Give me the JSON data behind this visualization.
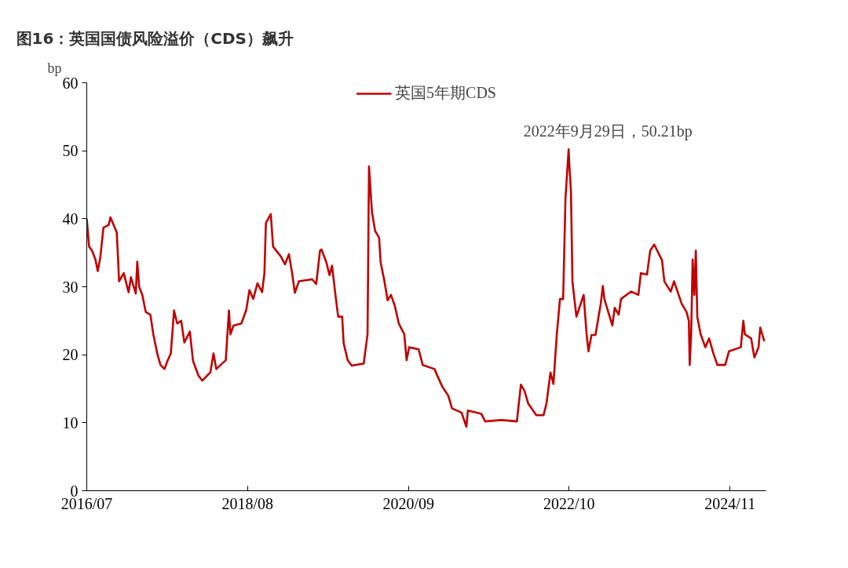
{
  "chart_data": {
    "type": "line",
    "title": "图16：英国国债风险溢价（CDS）飙升",
    "ylabel": "bp",
    "legend": "top",
    "grid": false,
    "xlim": [
      "2016-07-01",
      "2025-04-20"
    ],
    "xticks": [
      {
        "value": "2016-07-01",
        "label": "2016/07"
      },
      {
        "value": "2018-08-01",
        "label": "2018/08"
      },
      {
        "value": "2020-09-01",
        "label": "2020/09"
      },
      {
        "value": "2022-10-01",
        "label": "2022/10"
      },
      {
        "value": "2024-11-01",
        "label": "2024/11"
      }
    ],
    "ylim": [
      0,
      60
    ],
    "yticks": [
      0,
      10,
      20,
      30,
      40,
      50,
      60
    ],
    "annotations": [
      {
        "text": "2022年9月29日，50.21bp",
        "x": "2022-09-29",
        "y": 50.21
      }
    ],
    "series": [
      {
        "name": "英国5年期CDS",
        "color": "#c00000",
        "x": [
          "2016-07-01",
          "2016-07-12",
          "2016-07-26",
          "2016-08-11",
          "2016-08-22",
          "2016-09-03",
          "2016-09-18",
          "2016-10-13",
          "2016-10-21",
          "2016-11-20",
          "2016-12-01",
          "2016-12-23",
          "2017-01-15",
          "2017-01-26",
          "2017-02-18",
          "2017-02-25",
          "2017-03-06",
          "2017-03-21",
          "2017-04-06",
          "2017-04-28",
          "2017-05-12",
          "2017-06-01",
          "2017-06-15",
          "2017-07-04",
          "2017-07-18",
          "2017-08-03",
          "2017-08-18",
          "2017-09-02",
          "2017-09-21",
          "2017-10-06",
          "2017-11-01",
          "2017-11-16",
          "2017-12-12",
          "2017-12-30",
          "2018-02-06",
          "2018-02-21",
          "2018-03-06",
          "2018-04-20",
          "2018-05-05",
          "2018-05-12",
          "2018-05-27",
          "2018-07-03",
          "2018-07-26",
          "2018-08-10",
          "2018-08-28",
          "2018-09-17",
          "2018-10-09",
          "2018-10-20",
          "2018-10-27",
          "2018-11-19",
          "2018-11-30",
          "2019-01-07",
          "2019-01-25",
          "2019-02-13",
          "2019-02-28",
          "2019-03-13",
          "2019-04-01",
          "2019-06-03",
          "2019-06-22",
          "2019-07-10",
          "2019-07-17",
          "2019-08-09",
          "2019-08-24",
          "2019-09-05",
          "2019-09-20",
          "2019-10-04",
          "2019-10-23",
          "2019-10-30",
          "2019-11-18",
          "2019-12-07",
          "2020-02-02",
          "2020-02-20",
          "2020-02-27",
          "2020-03-12",
          "2020-03-27",
          "2020-04-15",
          "2020-04-22",
          "2020-05-10",
          "2020-05-25",
          "2020-06-10",
          "2020-06-28",
          "2020-07-17",
          "2020-08-12",
          "2020-08-23",
          "2020-09-04",
          "2020-10-19",
          "2020-11-07",
          "2021-01-02",
          "2021-01-20",
          "2021-02-08",
          "2021-03-08",
          "2021-03-26",
          "2021-05-10",
          "2021-06-02",
          "2021-06-09",
          "2021-08-12",
          "2021-08-30",
          "2021-11-14",
          "2022-01-27",
          "2022-02-15",
          "2022-03-04",
          "2022-03-22",
          "2022-04-29",
          "2022-06-02",
          "2022-06-16",
          "2022-07-05",
          "2022-07-19",
          "2022-08-04",
          "2022-08-19",
          "2022-09-03",
          "2022-09-14",
          "2022-09-29",
          "2022-10-03",
          "2022-10-10",
          "2022-10-17",
          "2022-10-24",
          "2022-11-05",
          "2022-12-09",
          "2022-12-23",
          "2023-01-01",
          "2023-01-15",
          "2023-02-03",
          "2023-02-28",
          "2023-03-10",
          "2023-03-17",
          "2023-04-24",
          "2023-05-05",
          "2023-05-24",
          "2023-06-04",
          "2023-07-22",
          "2023-08-25",
          "2023-09-06",
          "2023-10-05",
          "2023-10-20",
          "2023-11-08",
          "2023-12-15",
          "2023-12-26",
          "2024-01-25",
          "2024-02-10",
          "2024-03-17",
          "2024-04-09",
          "2024-04-20",
          "2024-04-24",
          "2024-05-01",
          "2024-05-08",
          "2024-05-16",
          "2024-05-23",
          "2024-05-30",
          "2024-06-15",
          "2024-07-07",
          "2024-07-25",
          "2024-08-14",
          "2024-09-02",
          "2024-10-09",
          "2024-10-27",
          "2024-12-22",
          "2025-01-03",
          "2025-01-10",
          "2025-02-09",
          "2025-02-24",
          "2025-03-16",
          "2025-03-24",
          "2025-04-12"
        ],
        "values": [
          40.0,
          35.9,
          35.3,
          34.0,
          32.3,
          34.3,
          38.7,
          39.1,
          40.2,
          38.0,
          30.8,
          32.0,
          29.2,
          31.4,
          29.0,
          33.7,
          30.0,
          28.8,
          26.3,
          25.9,
          23.0,
          20.0,
          18.5,
          17.9,
          19.1,
          20.2,
          26.5,
          24.6,
          25.0,
          21.8,
          23.4,
          19.1,
          16.9,
          16.2,
          17.4,
          20.2,
          17.9,
          19.2,
          26.5,
          23.0,
          24.3,
          24.6,
          26.6,
          29.5,
          28.2,
          30.5,
          29.2,
          32.0,
          39.4,
          40.7,
          35.9,
          34.4,
          33.3,
          34.8,
          32.0,
          29.1,
          30.8,
          31.1,
          30.4,
          35.3,
          35.5,
          33.6,
          31.7,
          33.1,
          29.1,
          25.6,
          25.6,
          21.7,
          19.2,
          18.4,
          18.7,
          23.0,
          47.7,
          41.0,
          38.2,
          37.2,
          33.6,
          30.8,
          28.0,
          28.8,
          27.2,
          24.6,
          23.0,
          19.2,
          21.1,
          20.8,
          18.5,
          17.9,
          16.6,
          15.3,
          14.0,
          12.1,
          11.5,
          9.4,
          11.8,
          11.3,
          10.2,
          10.4,
          10.2,
          15.6,
          14.7,
          12.8,
          11.1,
          11.1,
          12.8,
          17.4,
          15.7,
          23.0,
          28.2,
          28.2,
          43.0,
          50.21,
          47.6,
          44.0,
          30.8,
          28.8,
          25.6,
          28.8,
          23.0,
          20.5,
          22.9,
          22.9,
          27.5,
          30.1,
          28.2,
          24.3,
          26.9,
          25.9,
          28.2,
          29.3,
          28.8,
          32.0,
          31.8,
          35.3,
          36.2,
          33.9,
          30.8,
          29.3,
          30.8,
          27.5,
          26.3,
          25.0,
          18.5,
          23.0,
          34.0,
          28.8,
          35.3,
          25.6,
          23.0,
          21.1,
          22.4,
          20.2,
          18.5,
          18.5,
          20.5,
          21.1,
          25.0,
          23.0,
          22.4,
          19.6,
          21.1,
          24.0,
          22.0
        ]
      }
    ]
  }
}
